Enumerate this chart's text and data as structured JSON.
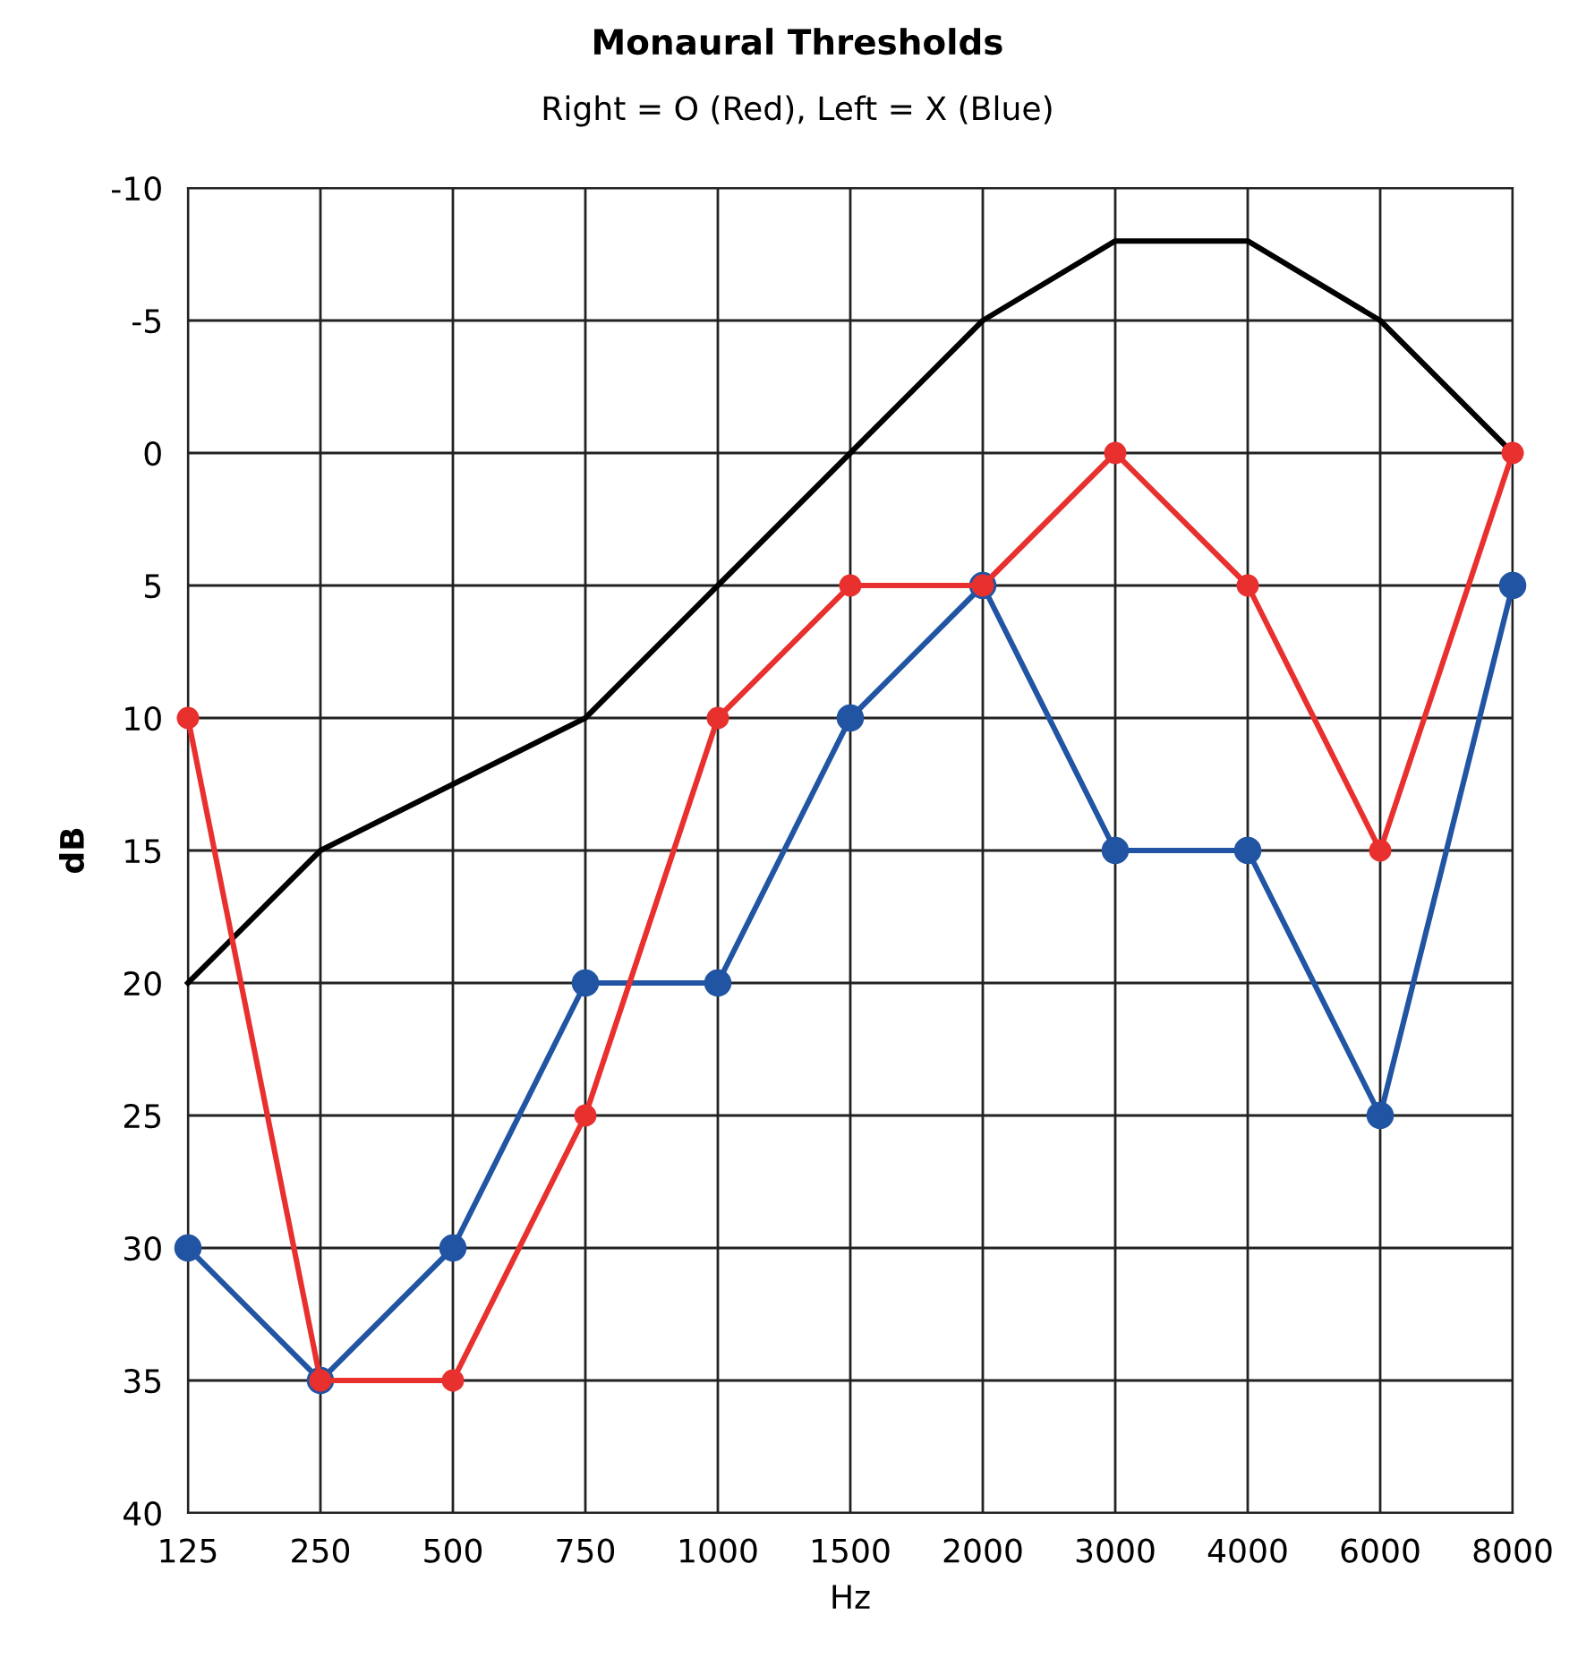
{
  "chart_data": {
    "type": "line",
    "title": "Monaural Thresholds",
    "subtitle": "Right = O (Red), Left = X (Blue)",
    "xlabel": "Hz",
    "ylabel": "dB",
    "categories": [
      "125",
      "250",
      "500",
      "750",
      "1000",
      "1500",
      "2000",
      "3000",
      "4000",
      "6000",
      "8000"
    ],
    "series": [
      {
        "color": "#000000",
        "marker": "none",
        "values": [
          20,
          15,
          12.5,
          10,
          5,
          0,
          -5,
          -8,
          -8,
          -5,
          0
        ]
      },
      {
        "color": "#2155a3",
        "marker": "circle",
        "values": [
          30,
          35,
          30,
          20,
          20,
          10,
          5,
          15,
          15,
          25,
          5
        ]
      },
      {
        "color": "#e8302f",
        "marker": "circle",
        "values": [
          10,
          35,
          35,
          25,
          10,
          5,
          5,
          0,
          5,
          15,
          0
        ]
      }
    ],
    "ylim": [
      40,
      -10
    ],
    "yticks": [
      -10,
      -5,
      0,
      5,
      10,
      15,
      20,
      25,
      30,
      35,
      40
    ],
    "grid": true,
    "legend": false,
    "line_style": "solid"
  }
}
